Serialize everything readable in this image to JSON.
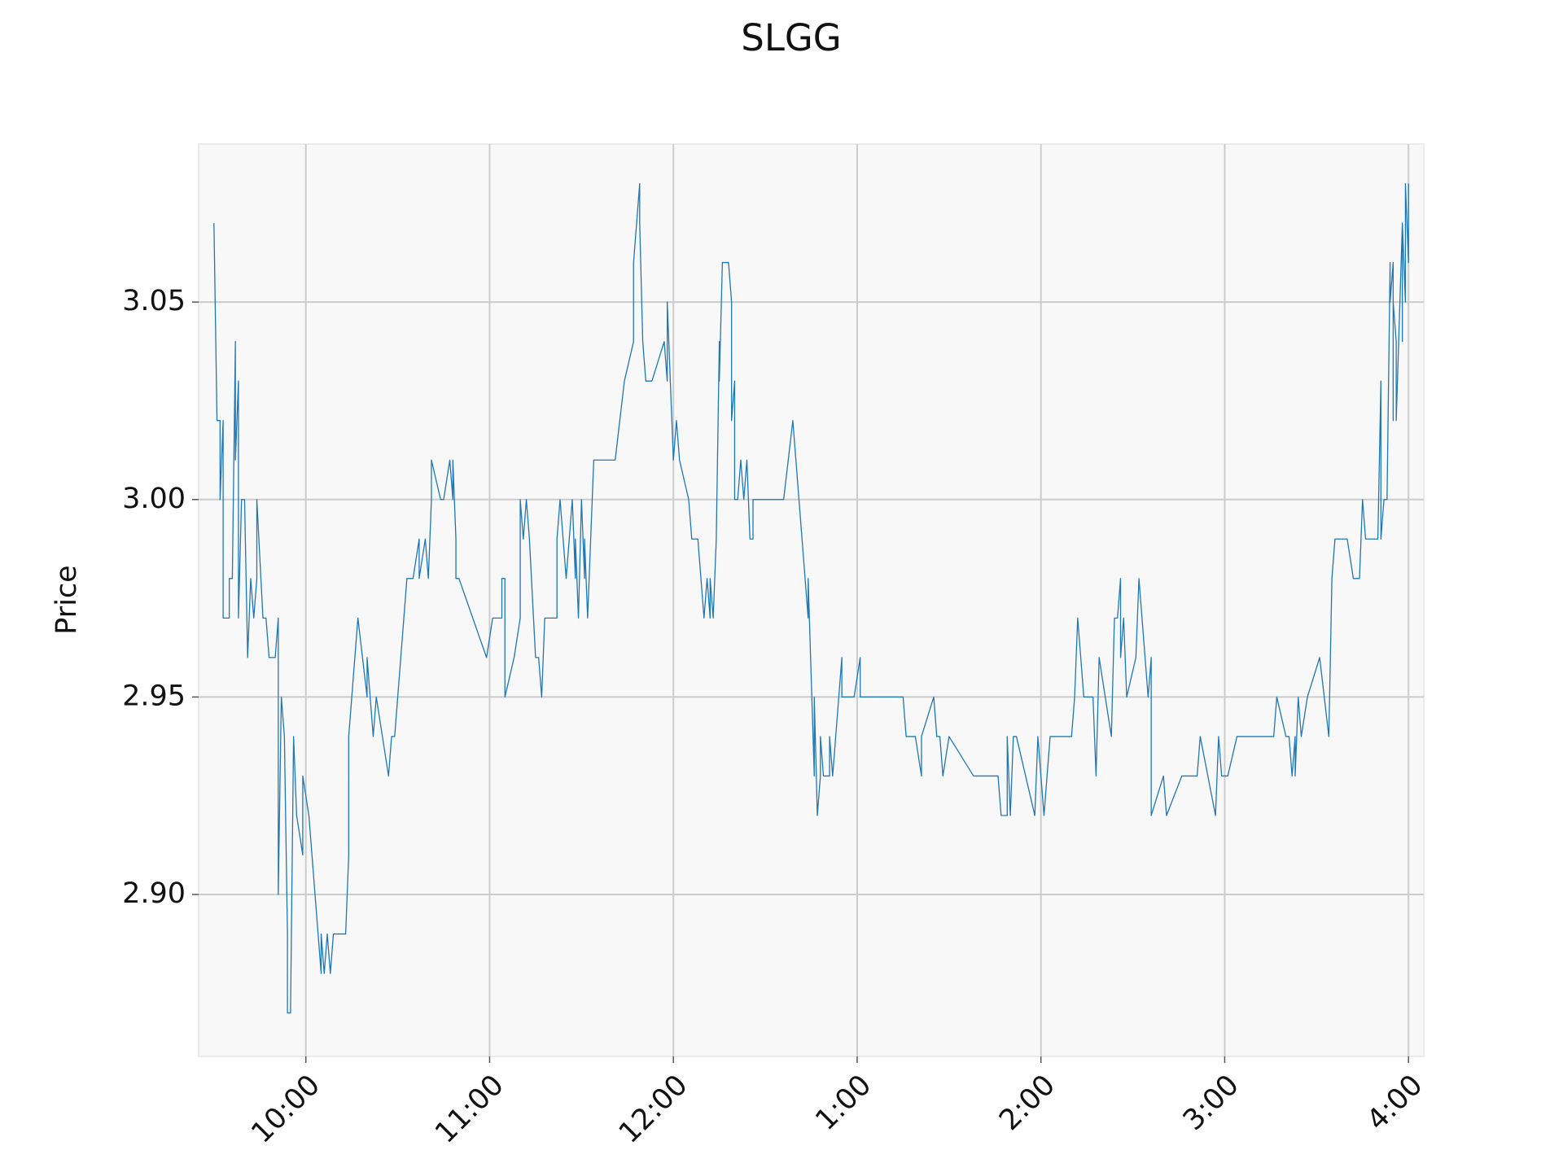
{
  "chart_data": {
    "type": "line",
    "title": "SLGG",
    "ylabel": "Price",
    "color": "#1f77b4",
    "grid": true,
    "xlim": [
      565,
      965
    ],
    "ylim": [
      2.859,
      3.09
    ],
    "xticks": [
      {
        "value": 600,
        "label": "10:00"
      },
      {
        "value": 660,
        "label": "11:00"
      },
      {
        "value": 720,
        "label": "12:00"
      },
      {
        "value": 780,
        "label": "1:00"
      },
      {
        "value": 840,
        "label": "2:00"
      },
      {
        "value": 900,
        "label": "3:00"
      },
      {
        "value": 960,
        "label": "4:00"
      }
    ],
    "yticks": [
      {
        "value": 2.9,
        "label": "2.90"
      },
      2.95,
      {
        "value": 3.0,
        "label": "3.00"
      },
      3.05
    ],
    "x": [
      570,
      571,
      572,
      572,
      573,
      573,
      575,
      575,
      576,
      577,
      577,
      578,
      578,
      579,
      580,
      581,
      582,
      583,
      584,
      584,
      586,
      587,
      588,
      590,
      591,
      591,
      592,
      593,
      594,
      594,
      595,
      596,
      597,
      599,
      599,
      601,
      602,
      603,
      605,
      605,
      606,
      607,
      608,
      609,
      610,
      613,
      614,
      614,
      615,
      617,
      620,
      620,
      622,
      623,
      627,
      628,
      629,
      631,
      632,
      633,
      635,
      637,
      637,
      639,
      640,
      641,
      641,
      644,
      645,
      647,
      648,
      648,
      649,
      649,
      650,
      659,
      661,
      664,
      664,
      665,
      665,
      668,
      670,
      670,
      671,
      672,
      673,
      675,
      676,
      677,
      678,
      682,
      682,
      683,
      685,
      687,
      688,
      688,
      689,
      690,
      691,
      691,
      692,
      694,
      701,
      704,
      707,
      707,
      708,
      709,
      709,
      710,
      711,
      713,
      717,
      718,
      718,
      720,
      721,
      722,
      725,
      726,
      728,
      730,
      731,
      732,
      732,
      733,
      734,
      735,
      735,
      736,
      738,
      739,
      739,
      740,
      740,
      741,
      742,
      743,
      744,
      745,
      746,
      746,
      756,
      759,
      761,
      764,
      764,
      766,
      766,
      767,
      768,
      768,
      769,
      771,
      771,
      772,
      775,
      775,
      779,
      781,
      781,
      795,
      796,
      799,
      801,
      801,
      805,
      806,
      807,
      808,
      810,
      818,
      826,
      827,
      829,
      829,
      830,
      831,
      832,
      838,
      839,
      841,
      843,
      850,
      851,
      852,
      854,
      857,
      858,
      859,
      863,
      864,
      865,
      866,
      866,
      867,
      868,
      871,
      872,
      875,
      876,
      876,
      880,
      881,
      886,
      891,
      892,
      897,
      898,
      899,
      901,
      904,
      916,
      917,
      920,
      921,
      922,
      923,
      923,
      924,
      925,
      927,
      931,
      934,
      935,
      936,
      940,
      942,
      944,
      945,
      946,
      950,
      951,
      951,
      952,
      953,
      954,
      954,
      955,
      955,
      955,
      956,
      956,
      958,
      958,
      958,
      959,
      959,
      960,
      960
    ],
    "values": [
      3.07,
      3.02,
      3.02,
      3.0,
      3.02,
      2.97,
      2.97,
      2.98,
      2.98,
      3.04,
      3.01,
      3.03,
      2.97,
      3.0,
      3.0,
      2.96,
      2.98,
      2.97,
      2.98,
      3.0,
      2.97,
      2.97,
      2.96,
      2.96,
      2.97,
      2.9,
      2.95,
      2.94,
      2.89,
      2.87,
      2.87,
      2.94,
      2.92,
      2.91,
      2.93,
      2.92,
      2.91,
      2.9,
      2.88,
      2.89,
      2.88,
      2.89,
      2.88,
      2.89,
      2.89,
      2.89,
      2.91,
      2.94,
      2.95,
      2.97,
      2.95,
      2.96,
      2.94,
      2.95,
      2.93,
      2.94,
      2.94,
      2.96,
      2.97,
      2.98,
      2.98,
      2.99,
      2.98,
      2.99,
      2.98,
      3.0,
      3.01,
      3.0,
      3.0,
      3.01,
      3.0,
      3.01,
      2.99,
      2.98,
      2.98,
      2.96,
      2.97,
      2.97,
      2.98,
      2.98,
      2.95,
      2.96,
      2.97,
      3.0,
      2.99,
      3.0,
      2.99,
      2.96,
      2.96,
      2.95,
      2.97,
      2.97,
      2.99,
      3.0,
      2.98,
      3.0,
      2.98,
      2.99,
      2.97,
      3.0,
      2.98,
      2.99,
      2.97,
      3.01,
      3.01,
      3.03,
      3.04,
      3.06,
      3.07,
      3.08,
      3.07,
      3.04,
      3.03,
      3.03,
      3.04,
      3.03,
      3.05,
      3.01,
      3.02,
      3.01,
      3.0,
      2.99,
      2.99,
      2.97,
      2.98,
      2.97,
      2.98,
      2.97,
      2.99,
      3.04,
      3.03,
      3.06,
      3.06,
      3.05,
      3.02,
      3.03,
      3.0,
      3.0,
      3.01,
      3.0,
      3.01,
      2.99,
      2.99,
      3.0,
      3.0,
      3.02,
      3.0,
      2.97,
      2.98,
      2.93,
      2.95,
      2.92,
      2.93,
      2.94,
      2.93,
      2.93,
      2.94,
      2.93,
      2.96,
      2.95,
      2.95,
      2.96,
      2.95,
      2.95,
      2.94,
      2.94,
      2.93,
      2.94,
      2.95,
      2.94,
      2.94,
      2.93,
      2.94,
      2.93,
      2.93,
      2.92,
      2.92,
      2.94,
      2.92,
      2.94,
      2.94,
      2.92,
      2.94,
      2.92,
      2.94,
      2.94,
      2.95,
      2.97,
      2.95,
      2.95,
      2.93,
      2.96,
      2.94,
      2.97,
      2.97,
      2.98,
      2.96,
      2.97,
      2.95,
      2.96,
      2.98,
      2.95,
      2.96,
      2.92,
      2.93,
      2.92,
      2.93,
      2.93,
      2.94,
      2.92,
      2.94,
      2.93,
      2.93,
      2.94,
      2.94,
      2.95,
      2.94,
      2.94,
      2.93,
      2.94,
      2.93,
      2.95,
      2.94,
      2.95,
      2.96,
      2.94,
      2.98,
      2.99,
      2.99,
      2.98,
      2.98,
      3.0,
      2.99,
      2.99,
      3.03,
      2.99,
      3.0,
      3.0,
      3.06,
      3.05,
      3.06,
      3.02,
      3.05,
      3.04,
      3.02,
      3.07,
      3.04,
      3.07,
      3.05,
      3.08,
      3.06,
      3.08
    ]
  }
}
